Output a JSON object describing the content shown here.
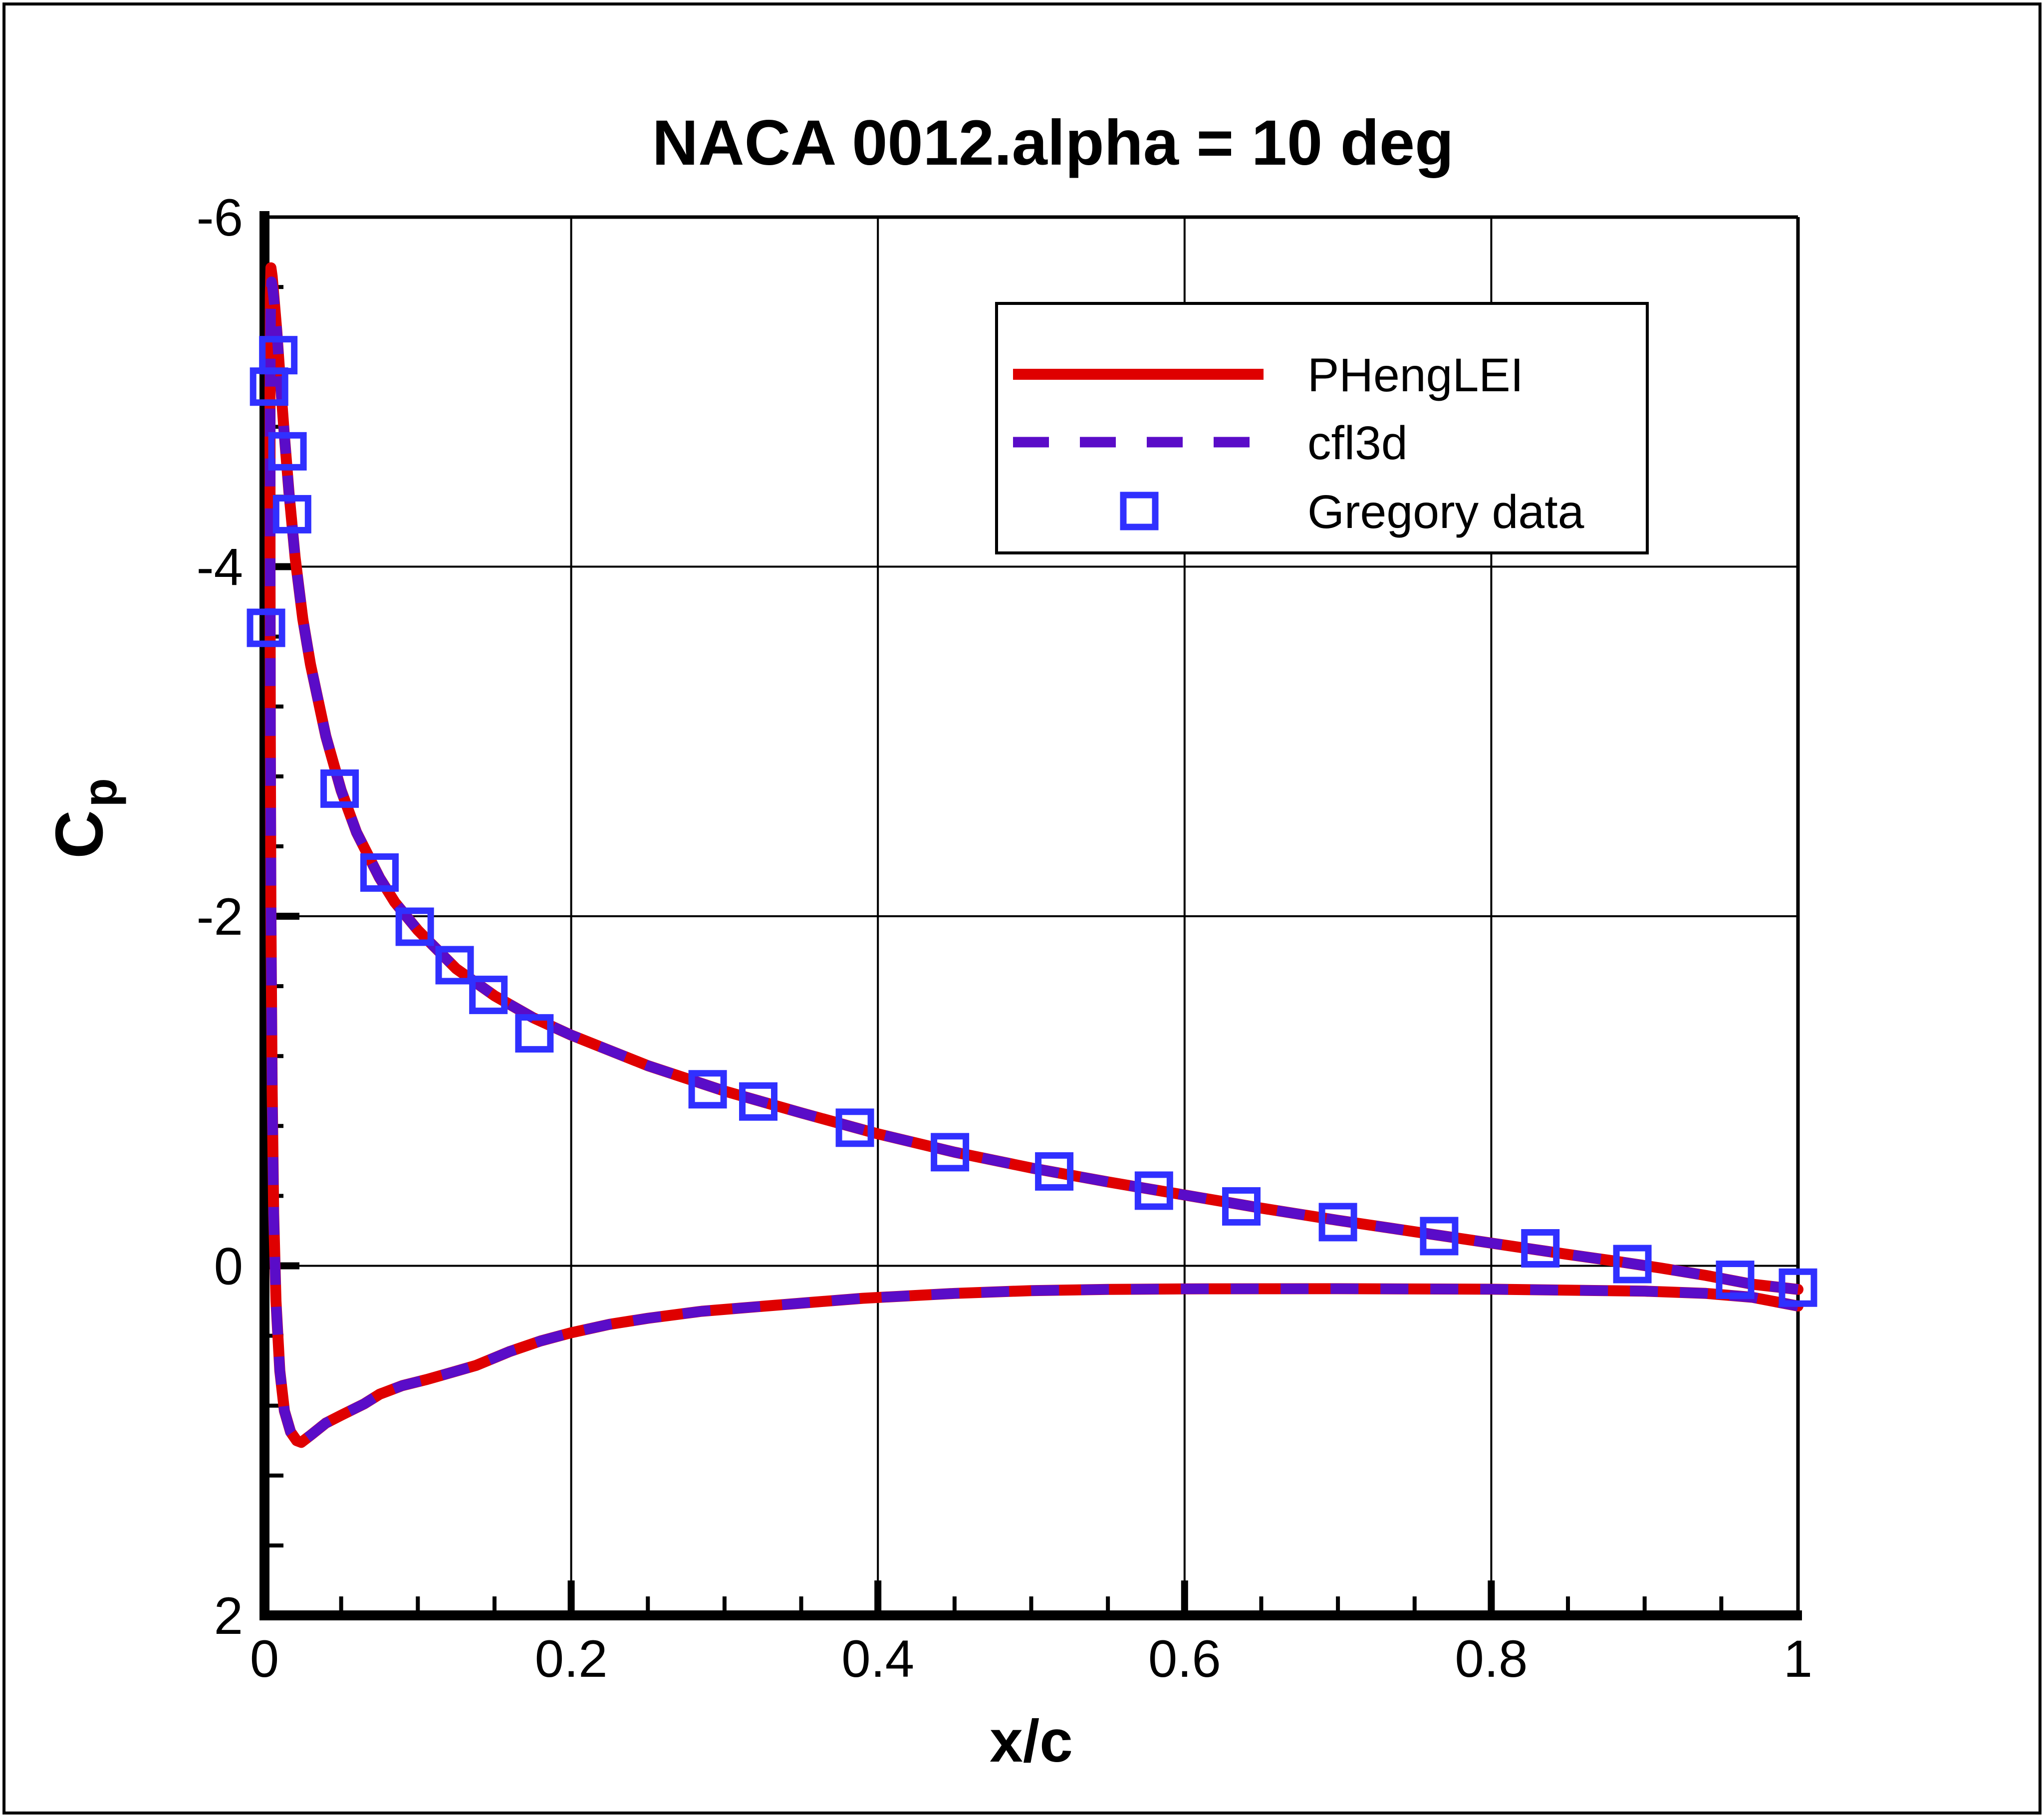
{
  "title": "NACA 0012.alpha = 10 deg",
  "colors": {
    "phenglei": "#df0000",
    "cfl3d": "#5a0cc8",
    "gregory": "#3030ff",
    "axis": "#000000",
    "background": "#ffffff"
  },
  "axes": {
    "x": {
      "label": "x/c",
      "min": 0,
      "max": 1,
      "major_ticks": [
        0,
        0.2,
        0.4,
        0.6,
        0.8,
        1
      ],
      "tick_labels": [
        "0",
        "0.2",
        "0.4",
        "0.6",
        "0.8",
        "1"
      ],
      "minor_step": 0.05,
      "gridlines": [
        0.2,
        0.4,
        0.6,
        0.8
      ]
    },
    "y": {
      "label": "C",
      "label_sub": "p",
      "min": -6,
      "max": 2,
      "inverted_axis": true,
      "major_ticks": [
        -6,
        -4,
        -2,
        0,
        2
      ],
      "tick_labels": [
        "-6",
        "-4",
        "-2",
        "0",
        "2"
      ],
      "minor_step": 0.4,
      "gridlines": [
        -4,
        -2,
        0
      ]
    }
  },
  "legend": {
    "items": [
      {
        "label": "PHengLEI",
        "type": "line",
        "style": "solid",
        "color": "#df0000"
      },
      {
        "label": "cfl3d",
        "type": "line",
        "style": "dashed",
        "color": "#5a0cc8"
      },
      {
        "label": "Gregory data",
        "type": "marker",
        "style": "square",
        "color": "#3030ff"
      }
    ]
  },
  "chart_data": {
    "type": "line",
    "title": "NACA 0012.alpha = 10 deg",
    "xlabel": "x/c",
    "ylabel": "Cp",
    "xlim": [
      0,
      1
    ],
    "ylim": [
      -6,
      2
    ],
    "y_axis_reversed": true,
    "grid": true,
    "legend_position": "upper-right-inside",
    "series": [
      {
        "name": "PHengLEI",
        "kind": "line",
        "color": "#df0000",
        "dash": "solid",
        "points": [
          [
            1.0,
            0.135
          ],
          [
            0.97,
            0.105
          ],
          [
            0.94,
            0.055
          ],
          [
            0.91,
            0.012
          ],
          [
            0.88,
            -0.028
          ],
          [
            0.85,
            -0.065
          ],
          [
            0.8,
            -0.13
          ],
          [
            0.75,
            -0.195
          ],
          [
            0.7,
            -0.26
          ],
          [
            0.65,
            -0.33
          ],
          [
            0.6,
            -0.405
          ],
          [
            0.55,
            -0.48
          ],
          [
            0.5,
            -0.56
          ],
          [
            0.45,
            -0.65
          ],
          [
            0.4,
            -0.755
          ],
          [
            0.35,
            -0.875
          ],
          [
            0.3,
            -1.0
          ],
          [
            0.25,
            -1.145
          ],
          [
            0.2,
            -1.32
          ],
          [
            0.175,
            -1.42
          ],
          [
            0.15,
            -1.545
          ],
          [
            0.125,
            -1.7
          ],
          [
            0.1,
            -1.92
          ],
          [
            0.085,
            -2.08
          ],
          [
            0.075,
            -2.22
          ],
          [
            0.06,
            -2.48
          ],
          [
            0.05,
            -2.72
          ],
          [
            0.04,
            -3.03
          ],
          [
            0.03,
            -3.44
          ],
          [
            0.025,
            -3.7
          ],
          [
            0.02,
            -4.05
          ],
          [
            0.016,
            -4.42
          ],
          [
            0.013,
            -4.75
          ],
          [
            0.01,
            -5.1
          ],
          [
            0.008,
            -5.35
          ],
          [
            0.006,
            -5.56
          ],
          [
            0.005,
            -5.66
          ],
          [
            0.0042,
            -5.71
          ],
          [
            0.0038,
            -5.55
          ],
          [
            0.0036,
            -5.0
          ],
          [
            0.0036,
            -4.0
          ],
          [
            0.0038,
            -3.0
          ],
          [
            0.0042,
            -2.0
          ],
          [
            0.005,
            -1.0
          ],
          [
            0.006,
            -0.3
          ],
          [
            0.0075,
            0.2
          ],
          [
            0.01,
            0.6
          ],
          [
            0.013,
            0.83
          ],
          [
            0.017,
            0.95
          ],
          [
            0.021,
            1.0
          ],
          [
            0.024,
            1.01
          ],
          [
            0.03,
            0.97
          ],
          [
            0.04,
            0.9
          ],
          [
            0.05,
            0.855
          ],
          [
            0.065,
            0.79
          ],
          [
            0.075,
            0.735
          ],
          [
            0.09,
            0.685
          ],
          [
            0.106,
            0.65
          ],
          [
            0.122,
            0.61
          ],
          [
            0.138,
            0.57
          ],
          [
            0.16,
            0.49
          ],
          [
            0.18,
            0.43
          ],
          [
            0.2,
            0.383
          ],
          [
            0.225,
            0.335
          ],
          [
            0.25,
            0.3
          ],
          [
            0.285,
            0.26
          ],
          [
            0.32,
            0.235
          ],
          [
            0.355,
            0.21
          ],
          [
            0.39,
            0.186
          ],
          [
            0.45,
            0.158
          ],
          [
            0.5,
            0.142
          ],
          [
            0.55,
            0.135
          ],
          [
            0.6,
            0.132
          ],
          [
            0.7,
            0.131
          ],
          [
            0.8,
            0.134
          ],
          [
            0.9,
            0.145
          ],
          [
            0.94,
            0.158
          ],
          [
            0.97,
            0.18
          ],
          [
            1.0,
            0.23
          ]
        ]
      },
      {
        "name": "cfl3d",
        "kind": "line",
        "color": "#5a0cc8",
        "dash": "dashed",
        "points": [
          [
            1.0,
            0.135
          ],
          [
            0.97,
            0.105
          ],
          [
            0.94,
            0.055
          ],
          [
            0.91,
            0.012
          ],
          [
            0.88,
            -0.028
          ],
          [
            0.85,
            -0.065
          ],
          [
            0.8,
            -0.13
          ],
          [
            0.75,
            -0.195
          ],
          [
            0.7,
            -0.26
          ],
          [
            0.65,
            -0.33
          ],
          [
            0.6,
            -0.405
          ],
          [
            0.55,
            -0.48
          ],
          [
            0.5,
            -0.56
          ],
          [
            0.45,
            -0.65
          ],
          [
            0.4,
            -0.755
          ],
          [
            0.35,
            -0.875
          ],
          [
            0.3,
            -1.0
          ],
          [
            0.25,
            -1.145
          ],
          [
            0.2,
            -1.32
          ],
          [
            0.175,
            -1.42
          ],
          [
            0.15,
            -1.545
          ],
          [
            0.125,
            -1.7
          ],
          [
            0.1,
            -1.92
          ],
          [
            0.085,
            -2.08
          ],
          [
            0.075,
            -2.22
          ],
          [
            0.06,
            -2.48
          ],
          [
            0.05,
            -2.72
          ],
          [
            0.04,
            -3.03
          ],
          [
            0.03,
            -3.44
          ],
          [
            0.025,
            -3.7
          ],
          [
            0.02,
            -4.05
          ],
          [
            0.016,
            -4.42
          ],
          [
            0.013,
            -4.75
          ],
          [
            0.01,
            -5.1
          ],
          [
            0.008,
            -5.35
          ],
          [
            0.006,
            -5.54
          ],
          [
            0.005,
            -5.61
          ],
          [
            0.0046,
            -5.63
          ],
          [
            0.004,
            -5.45
          ],
          [
            0.0037,
            -5.0
          ],
          [
            0.0037,
            -4.0
          ],
          [
            0.0039,
            -3.0
          ],
          [
            0.0043,
            -2.0
          ],
          [
            0.005,
            -1.0
          ],
          [
            0.006,
            -0.3
          ],
          [
            0.0075,
            0.2
          ],
          [
            0.01,
            0.6
          ],
          [
            0.013,
            0.83
          ],
          [
            0.017,
            0.95
          ],
          [
            0.021,
            1.0
          ],
          [
            0.024,
            1.01
          ],
          [
            0.03,
            0.97
          ],
          [
            0.04,
            0.9
          ],
          [
            0.05,
            0.855
          ],
          [
            0.065,
            0.79
          ],
          [
            0.075,
            0.735
          ],
          [
            0.09,
            0.685
          ],
          [
            0.106,
            0.65
          ],
          [
            0.122,
            0.61
          ],
          [
            0.138,
            0.57
          ],
          [
            0.16,
            0.49
          ],
          [
            0.18,
            0.43
          ],
          [
            0.2,
            0.383
          ],
          [
            0.225,
            0.335
          ],
          [
            0.25,
            0.3
          ],
          [
            0.285,
            0.26
          ],
          [
            0.32,
            0.235
          ],
          [
            0.355,
            0.21
          ],
          [
            0.39,
            0.186
          ],
          [
            0.45,
            0.158
          ],
          [
            0.5,
            0.142
          ],
          [
            0.55,
            0.135
          ],
          [
            0.6,
            0.132
          ],
          [
            0.7,
            0.131
          ],
          [
            0.8,
            0.134
          ],
          [
            0.9,
            0.145
          ],
          [
            0.94,
            0.158
          ],
          [
            0.97,
            0.18
          ],
          [
            1.0,
            0.23
          ]
        ]
      },
      {
        "name": "Gregory data",
        "kind": "scatter",
        "color": "#3030ff",
        "marker": "open-square",
        "points": [
          [
            0.001,
            -3.65
          ],
          [
            0.003,
            -5.03
          ],
          [
            0.009,
            -5.21
          ],
          [
            0.015,
            -4.66
          ],
          [
            0.018,
            -4.3
          ],
          [
            0.049,
            -2.73
          ],
          [
            0.075,
            -2.25
          ],
          [
            0.098,
            -1.94
          ],
          [
            0.124,
            -1.72
          ],
          [
            0.146,
            -1.55
          ],
          [
            0.176,
            -1.33
          ],
          [
            0.289,
            -1.01
          ],
          [
            0.322,
            -0.94
          ],
          [
            0.385,
            -0.79
          ],
          [
            0.447,
            -0.65
          ],
          [
            0.515,
            -0.54
          ],
          [
            0.58,
            -0.43
          ],
          [
            0.637,
            -0.34
          ],
          [
            0.7,
            -0.25
          ],
          [
            0.766,
            -0.17
          ],
          [
            0.832,
            -0.1
          ],
          [
            0.892,
            -0.01
          ],
          [
            0.959,
            0.08
          ],
          [
            1.0,
            0.125
          ]
        ]
      }
    ]
  }
}
